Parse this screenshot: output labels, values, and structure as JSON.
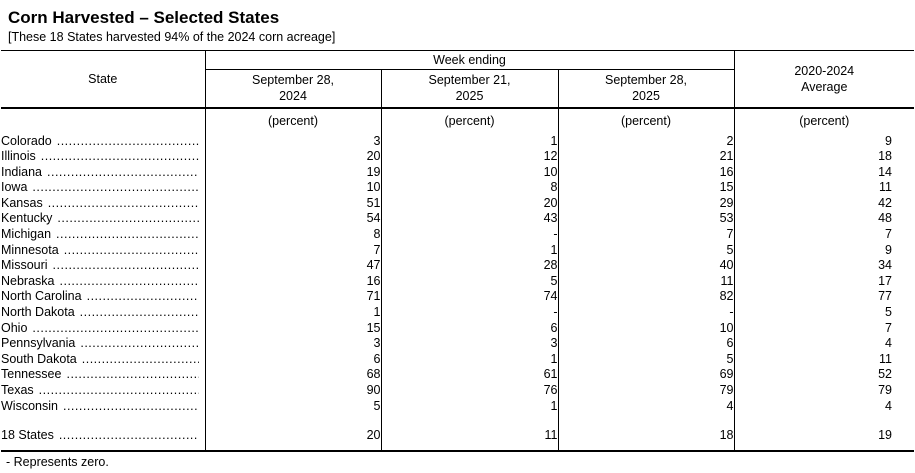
{
  "page": {
    "title": "Corn Harvested – Selected States",
    "subtitle": "[These 18 States harvested 94% of the 2024 corn acreage]",
    "footnote": "- Represents zero."
  },
  "table": {
    "state_header": "State",
    "week_ending_header": "Week ending",
    "columns": [
      "September 28,\n2024",
      "September 21,\n2025",
      "September 28,\n2025"
    ],
    "average_header": "2020-2024\nAverage",
    "unit_label": "(percent)",
    "rows": [
      {
        "state": "Colorado",
        "values": [
          "3",
          "1",
          "2",
          "9"
        ]
      },
      {
        "state": "Illinois",
        "values": [
          "20",
          "12",
          "21",
          "18"
        ]
      },
      {
        "state": "Indiana",
        "values": [
          "19",
          "10",
          "16",
          "14"
        ]
      },
      {
        "state": "Iowa",
        "values": [
          "10",
          "8",
          "15",
          "11"
        ]
      },
      {
        "state": "Kansas",
        "values": [
          "51",
          "20",
          "29",
          "42"
        ]
      },
      {
        "state": "Kentucky",
        "values": [
          "54",
          "43",
          "53",
          "48"
        ]
      },
      {
        "state": "Michigan",
        "values": [
          "8",
          "-",
          "7",
          "7"
        ]
      },
      {
        "state": "Minnesota",
        "values": [
          "7",
          "1",
          "5",
          "9"
        ]
      },
      {
        "state": "Missouri",
        "values": [
          "47",
          "28",
          "40",
          "34"
        ]
      },
      {
        "state": "Nebraska",
        "values": [
          "16",
          "5",
          "11",
          "17"
        ]
      },
      {
        "state": "North Carolina",
        "values": [
          "71",
          "74",
          "82",
          "77"
        ]
      },
      {
        "state": "North Dakota",
        "values": [
          "1",
          "-",
          "-",
          "5"
        ]
      },
      {
        "state": "Ohio",
        "values": [
          "15",
          "6",
          "10",
          "7"
        ]
      },
      {
        "state": "Pennsylvania",
        "values": [
          "3",
          "3",
          "6",
          "4"
        ]
      },
      {
        "state": "South Dakota",
        "values": [
          "6",
          "1",
          "5",
          "11"
        ]
      },
      {
        "state": "Tennessee",
        "values": [
          "68",
          "61",
          "69",
          "52"
        ]
      },
      {
        "state": "Texas",
        "values": [
          "90",
          "76",
          "79",
          "79"
        ]
      },
      {
        "state": "Wisconsin",
        "values": [
          "5",
          "1",
          "4",
          "4"
        ]
      }
    ],
    "total_row": {
      "state": "18 States",
      "values": [
        "20",
        "11",
        "18",
        "19"
      ]
    }
  }
}
